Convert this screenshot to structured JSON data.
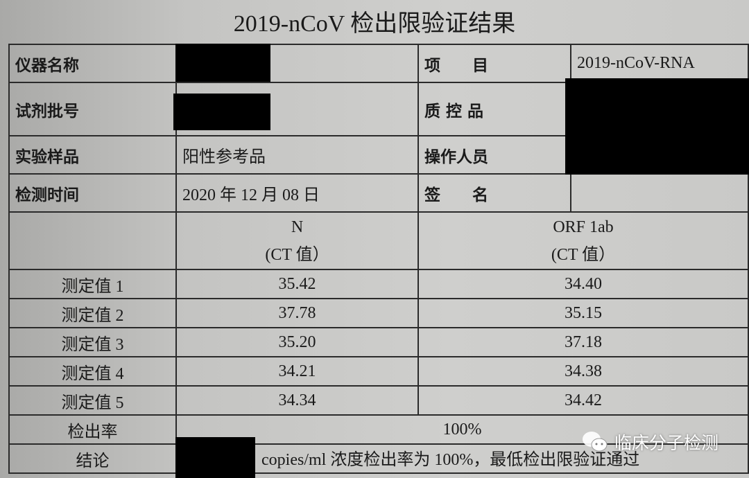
{
  "title": "2019-nCoV 检出限验证结果",
  "info": [
    {
      "label": "仪器名称",
      "value": "",
      "label2": "项　　目",
      "value2": "2019-nCoV-RNA"
    },
    {
      "label": "试剂批号",
      "value": "",
      "label2": "质 控 品",
      "value2": ""
    },
    {
      "label": "实验样品",
      "value": "阳性参考品",
      "label2": "操作人员",
      "value2": ""
    },
    {
      "label": "检测时间",
      "value": "2020 年 12 月 08 日",
      "label2": "签　　名",
      "value2": ""
    }
  ],
  "columns": [
    {
      "name": "N",
      "unit": "(CT 值）"
    },
    {
      "name": "ORF 1ab",
      "unit": "(CT 值）"
    }
  ],
  "rows": [
    {
      "label": "测定值 1",
      "n": "35.42",
      "orf": "34.40"
    },
    {
      "label": "测定值 2",
      "n": "37.78",
      "orf": "35.15"
    },
    {
      "label": "测定值 3",
      "n": "35.20",
      "orf": "37.18"
    },
    {
      "label": "测定值 4",
      "n": "34.21",
      "orf": "34.38"
    },
    {
      "label": "测定值 5",
      "n": "34.34",
      "orf": "34.42"
    }
  ],
  "detection_rate": {
    "label": "检出率",
    "value": "100%"
  },
  "conclusion": {
    "label": "结论",
    "text": "copies/ml 浓度检出率为 100%，最低检出限验证通过"
  },
  "watermark": "临床分子检测"
}
